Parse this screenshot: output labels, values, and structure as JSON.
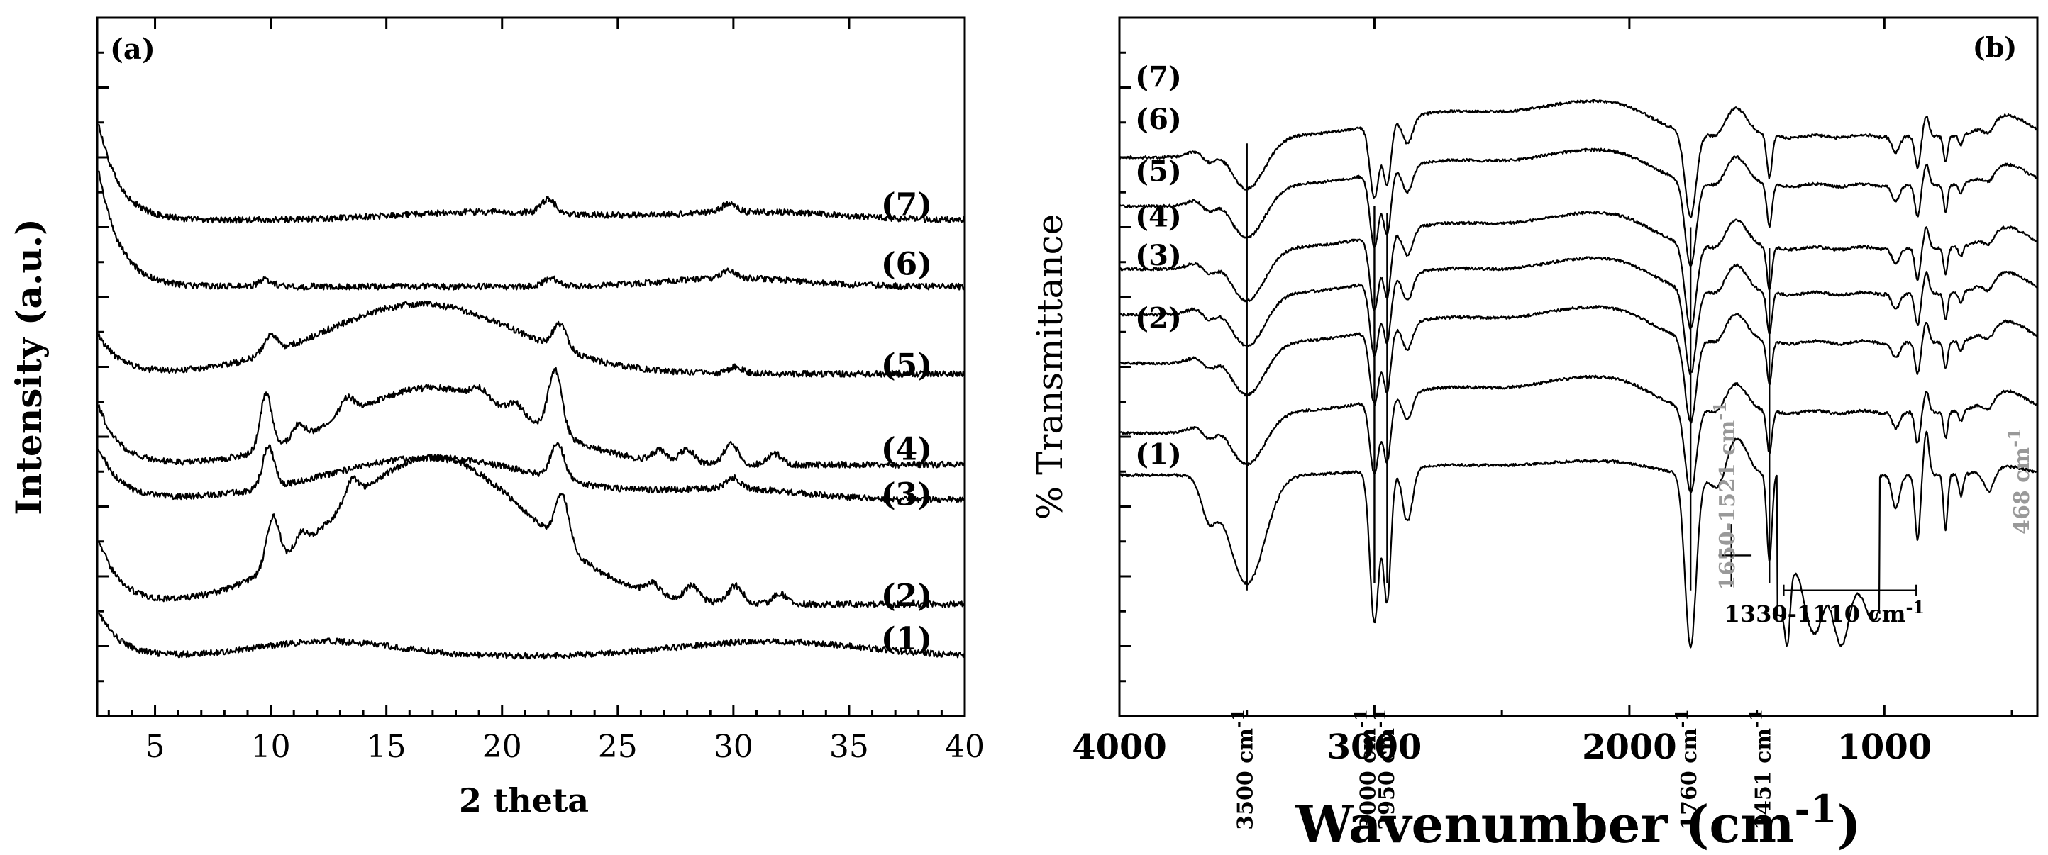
{
  "chart_data": [
    {
      "type": "line",
      "panel_label": "(a)",
      "xlabel": "2 theta",
      "ylabel": "Intensity (a.u.)",
      "xlim": [
        2.5,
        40
      ],
      "xticks": [
        "5",
        "10",
        "15",
        "20",
        "25",
        "30",
        "35",
        "40"
      ],
      "grid": false,
      "series": [
        {
          "name": "(1)",
          "baseline": 0.085,
          "rise": 0.07,
          "humps": [
            [
              12.5,
              0.022,
              3.0
            ],
            [
              31.5,
              0.022,
              4.0
            ]
          ],
          "peaks": []
        },
        {
          "name": "(2)",
          "baseline": 0.16,
          "rise": 0.1,
          "humps": [
            [
              17.0,
              0.21,
              4.2
            ]
          ],
          "peaks": [
            [
              10.1,
              0.07,
              0.28
            ],
            [
              11.3,
              0.02,
              0.25
            ],
            [
              13.5,
              0.03,
              0.3
            ],
            [
              22.6,
              0.07,
              0.3
            ],
            [
              26.5,
              0.015,
              0.3
            ],
            [
              28.2,
              0.02,
              0.3
            ],
            [
              30.1,
              0.025,
              0.3
            ],
            [
              32.0,
              0.015,
              0.3
            ]
          ]
        },
        {
          "name": "(3)",
          "baseline": 0.31,
          "rise": 0.08,
          "humps": [
            [
              17.0,
              0.06,
              4.5
            ],
            [
              30.0,
              0.015,
              3.0
            ]
          ],
          "peaks": [
            [
              9.9,
              0.06,
              0.25
            ],
            [
              22.4,
              0.05,
              0.3
            ],
            [
              30.0,
              0.015,
              0.3
            ]
          ]
        },
        {
          "name": "(4)",
          "baseline": 0.36,
          "rise": 0.09,
          "humps": [
            [
              17.0,
              0.11,
              4.0
            ]
          ],
          "peaks": [
            [
              9.8,
              0.08,
              0.25
            ],
            [
              11.2,
              0.02,
              0.25
            ],
            [
              13.3,
              0.025,
              0.3
            ],
            [
              19.0,
              0.015,
              0.3
            ],
            [
              20.6,
              0.015,
              0.3
            ],
            [
              22.3,
              0.09,
              0.3
            ],
            [
              26.8,
              0.015,
              0.3
            ],
            [
              28.0,
              0.02,
              0.3
            ],
            [
              29.9,
              0.03,
              0.3
            ],
            [
              31.8,
              0.015,
              0.3
            ]
          ]
        },
        {
          "name": "(5)",
          "baseline": 0.49,
          "rise": 0.06,
          "humps": [
            [
              16.5,
              0.1,
              4.2
            ]
          ],
          "peaks": [
            [
              10.0,
              0.025,
              0.3
            ],
            [
              22.5,
              0.035,
              0.3
            ],
            [
              30.1,
              0.01,
              0.3
            ]
          ]
        },
        {
          "name": "(6)",
          "baseline": 0.615,
          "rise": 0.18,
          "humps": [
            [
              30.0,
              0.012,
              3.0
            ]
          ],
          "peaks": [
            [
              9.8,
              0.01,
              0.3
            ],
            [
              22.1,
              0.012,
              0.3
            ],
            [
              29.8,
              0.01,
              0.3
            ]
          ]
        },
        {
          "name": "(7)",
          "baseline": 0.71,
          "rise": 0.15,
          "humps": [
            [
              19.5,
              0.012,
              4.0
            ],
            [
              31.0,
              0.012,
              3.5
            ]
          ],
          "peaks": [
            [
              22.0,
              0.02,
              0.3
            ],
            [
              29.8,
              0.012,
              0.3
            ]
          ]
        }
      ]
    },
    {
      "type": "line",
      "panel_label": "(b)",
      "xlabel": "Wavenumber (cm",
      "xlabel_sup": "-1",
      "xlabel_close": ")",
      "ylabel": "% Transmittance",
      "xlim": [
        4000,
        400
      ],
      "xticks": [
        "4000",
        "3000",
        "2000",
        "1000"
      ],
      "grid": false,
      "series": [
        {
          "name": "(1)",
          "base": 0.655
        },
        {
          "name": "(2)",
          "base": 0.565
        },
        {
          "name": "(3)",
          "base": 0.465
        },
        {
          "name": "(4)",
          "base": 0.395
        },
        {
          "name": "(5)",
          "base": 0.33
        },
        {
          "name": "(6)",
          "base": 0.24
        },
        {
          "name": "(7)",
          "base": 0.17
        }
      ],
      "annotations": [
        {
          "label": "3500 cm",
          "sup": "-1",
          "x": 3500
        },
        {
          "label": "3000 cm",
          "sup": "-1",
          "x": 3000
        },
        {
          "label": "2950 cm",
          "sup": "-1",
          "x": 2950
        },
        {
          "label": "1760 cm",
          "sup": "-1",
          "x": 1760
        },
        {
          "label": "1650-1521 cm",
          "sup": "-1",
          "x": 1600,
          "color": "#999999"
        },
        {
          "label": "1451 cm",
          "sup": "-1",
          "x": 1451
        },
        {
          "label": "1330-1110 cm",
          "sup": "-1",
          "x": 1220
        },
        {
          "label": "468 cm",
          "sup": "-1",
          "x": 468,
          "color": "#999999"
        }
      ]
    }
  ]
}
